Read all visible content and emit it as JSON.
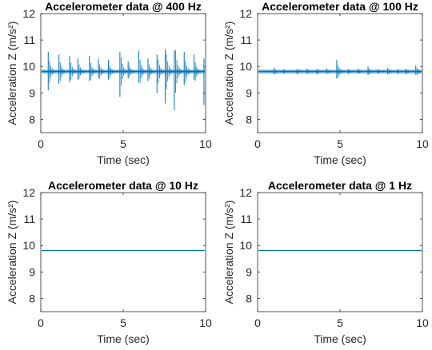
{
  "figure": {
    "series_color": "#0072BD"
  },
  "chart_data": [
    {
      "type": "line",
      "title": "Accelerometer data @ 400 Hz",
      "xlabel": "Time (sec)",
      "ylabel": "Acceleration Z (m/s²)",
      "xlim": [
        0,
        10
      ],
      "ylim": [
        7.5,
        12
      ],
      "xticks": [
        "0",
        "5",
        "10"
      ],
      "yticks": [
        "8",
        "9",
        "10",
        "11",
        "12"
      ],
      "baseline": 9.81,
      "spikes": [
        {
          "x": 0.45,
          "hi": 10.55,
          "lo": 9.1
        },
        {
          "x": 1.1,
          "hi": 10.45,
          "lo": 9.35
        },
        {
          "x": 1.75,
          "hi": 10.4,
          "lo": 9.4
        },
        {
          "x": 2.25,
          "hi": 10.3,
          "lo": 9.5
        },
        {
          "x": 2.95,
          "hi": 10.4,
          "lo": 9.45
        },
        {
          "x": 3.5,
          "hi": 10.3,
          "lo": 9.55
        },
        {
          "x": 4.1,
          "hi": 10.25,
          "lo": 9.5
        },
        {
          "x": 4.8,
          "hi": 10.55,
          "lo": 8.85
        },
        {
          "x": 5.3,
          "hi": 10.2,
          "lo": 9.55
        },
        {
          "x": 5.95,
          "hi": 10.6,
          "lo": 9.4
        },
        {
          "x": 6.5,
          "hi": 10.3,
          "lo": 9.45
        },
        {
          "x": 7.05,
          "hi": 10.45,
          "lo": 9.0
        },
        {
          "x": 7.55,
          "hi": 10.65,
          "lo": 8.6
        },
        {
          "x": 8.1,
          "hi": 10.6,
          "lo": 8.35
        },
        {
          "x": 8.7,
          "hi": 10.55,
          "lo": 9.3
        },
        {
          "x": 9.3,
          "hi": 10.45,
          "lo": 9.5
        },
        {
          "x": 9.9,
          "hi": 10.3,
          "lo": 8.55
        }
      ]
    },
    {
      "type": "line",
      "title": "Accelerometer data @ 100 Hz",
      "xlabel": "Time (sec)",
      "ylabel": "Acceleration Z (m/s²)",
      "xlim": [
        0,
        10
      ],
      "ylim": [
        7.5,
        12
      ],
      "xticks": [
        "0",
        "5",
        "10"
      ],
      "yticks": [
        "8",
        "9",
        "10",
        "11",
        "12"
      ],
      "baseline": 9.81,
      "spikes": [
        {
          "x": 1.0,
          "hi": 9.95,
          "lo": 9.7
        },
        {
          "x": 1.6,
          "hi": 9.9,
          "lo": 9.72
        },
        {
          "x": 2.4,
          "hi": 9.9,
          "lo": 9.7
        },
        {
          "x": 3.0,
          "hi": 9.92,
          "lo": 9.72
        },
        {
          "x": 3.6,
          "hi": 9.9,
          "lo": 9.7
        },
        {
          "x": 4.2,
          "hi": 9.92,
          "lo": 9.72
        },
        {
          "x": 4.8,
          "hi": 10.25,
          "lo": 9.55
        },
        {
          "x": 5.5,
          "hi": 9.9,
          "lo": 9.72
        },
        {
          "x": 6.1,
          "hi": 9.92,
          "lo": 9.72
        },
        {
          "x": 6.7,
          "hi": 10.0,
          "lo": 9.68
        },
        {
          "x": 7.3,
          "hi": 9.9,
          "lo": 9.72
        },
        {
          "x": 7.9,
          "hi": 9.95,
          "lo": 9.7
        },
        {
          "x": 8.5,
          "hi": 9.9,
          "lo": 9.72
        },
        {
          "x": 9.0,
          "hi": 9.92,
          "lo": 9.7
        },
        {
          "x": 9.6,
          "hi": 10.05,
          "lo": 9.68
        }
      ]
    },
    {
      "type": "line",
      "title": "Accelerometer data @ 10 Hz",
      "xlabel": "Time (sec)",
      "ylabel": "Acceleration Z (m/s²)",
      "xlim": [
        0,
        10
      ],
      "ylim": [
        7.5,
        12
      ],
      "xticks": [
        "0",
        "5",
        "10"
      ],
      "yticks": [
        "8",
        "9",
        "10",
        "11",
        "12"
      ],
      "baseline": 9.81,
      "spikes": []
    },
    {
      "type": "line",
      "title": "Accelerometer data @ 1 Hz",
      "xlabel": "Time (sec)",
      "ylabel": "Acceleration Z (m/s²)",
      "xlim": [
        0,
        10
      ],
      "ylim": [
        7.5,
        12
      ],
      "xticks": [
        "0",
        "5",
        "10"
      ],
      "yticks": [
        "8",
        "9",
        "10",
        "11",
        "12"
      ],
      "baseline": 9.81,
      "spikes": []
    }
  ]
}
